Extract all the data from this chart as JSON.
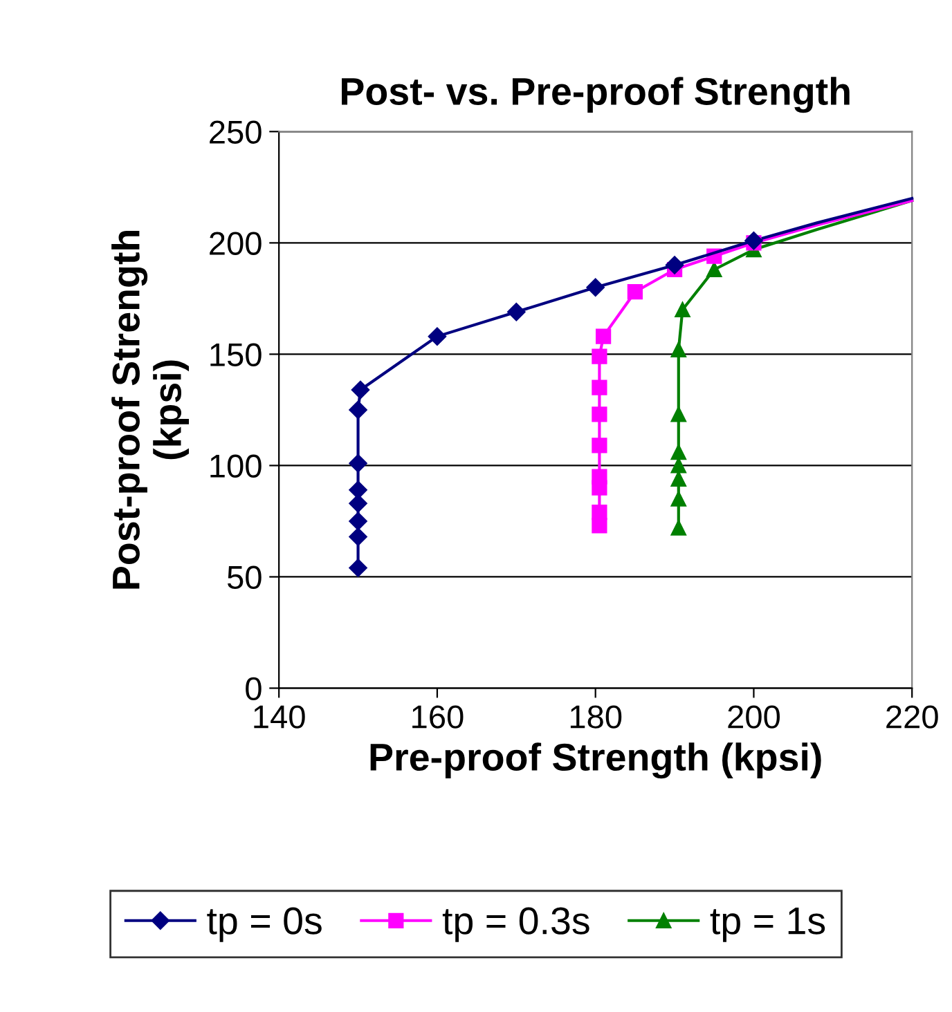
{
  "chart_data": {
    "type": "line",
    "title": "Post- vs. Pre-proof Strength",
    "xlabel": "Pre-proof Strength (kpsi)",
    "ylabel": "Post-proof Strength\n(kpsi)",
    "xlim": [
      140,
      220
    ],
    "xticks": [
      140,
      160,
      180,
      200,
      220
    ],
    "ylim": [
      0,
      250
    ],
    "yticks": [
      0,
      50,
      100,
      150,
      200,
      250
    ],
    "grid": "y",
    "legend": "bottom",
    "line_style": "solid",
    "series": [
      {
        "name": "tp = 0s",
        "color": "#000080",
        "marker": "diamond",
        "x": [
          150,
          150,
          150,
          150,
          150,
          150,
          150,
          150.3,
          160,
          170,
          180,
          190,
          200
        ],
        "values": [
          54,
          68,
          75,
          83,
          89,
          101,
          125,
          134,
          158,
          169,
          180,
          190,
          201
        ]
      },
      {
        "name": "tp = 0.3s",
        "color": "#ff00ff",
        "marker": "square",
        "x": [
          180.5,
          180.5,
          180.5,
          180.5,
          180.5,
          180.5,
          180.5,
          180.5,
          181,
          185,
          190,
          195,
          200
        ],
        "values": [
          73,
          79,
          90,
          95,
          109,
          123,
          135,
          149,
          158,
          178,
          188,
          194,
          200
        ]
      },
      {
        "name": "tp = 1s",
        "color": "#008000",
        "marker": "triangle",
        "x": [
          190.5,
          190.5,
          190.5,
          190.5,
          190.5,
          190.5,
          190.5,
          191,
          195,
          200
        ],
        "values": [
          72,
          85,
          94,
          100,
          106,
          123,
          152,
          170,
          188,
          197
        ]
      },
      {
        "color": "#000080",
        "marker": "none",
        "x": [
          200,
          208,
          220
        ],
        "values": [
          201,
          209,
          220
        ]
      },
      {
        "color": "#ff00ff",
        "marker": "none",
        "x": [
          200,
          208,
          220
        ],
        "values": [
          200,
          208,
          219
        ]
      },
      {
        "color": "#008000",
        "marker": "none",
        "x": [
          200,
          208,
          220
        ],
        "values": [
          197,
          206,
          219
        ]
      }
    ]
  }
}
